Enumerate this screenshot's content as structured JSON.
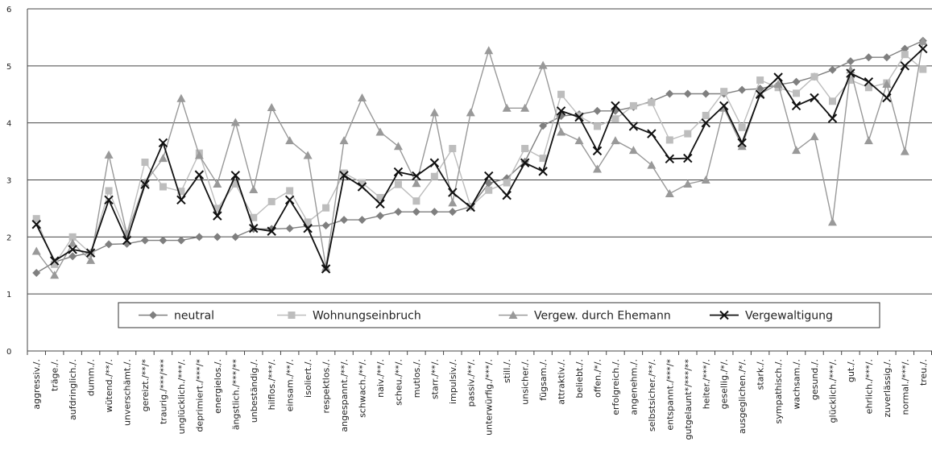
{
  "title": "",
  "chart_data": {
    "type": "line",
    "title": "",
    "xlabel": "",
    "ylabel": "",
    "ylim": [
      0,
      6
    ],
    "yticks": [
      0,
      1,
      2,
      3,
      4,
      5,
      6
    ],
    "grid": true,
    "legend_placement": "center-left",
    "categories": [
      "aggressiv./.",
      "träge./.",
      "aufdringlich./.",
      "dumm./.",
      "wütend./**/.",
      "unverschämt./.",
      "gereizt./**/*",
      "traurig./***/***",
      "unglücklich./***/.",
      "deprimiert./***/*",
      "energielos./.",
      "ängstlich./***/**",
      "unbeständig./.",
      "hilflos./***/.",
      "einsam./**/.",
      "isoliert./.",
      "respektlos./.",
      "angespannt./**/.",
      "schwach./**/.",
      "naiv./**/.",
      "scheu./**/.",
      "mutlos./.",
      "starr./**/.",
      "impulsiv./.",
      "passiv./**/.",
      "unterwürfig./***/.",
      "still./.",
      "unsicher./.",
      "fügsam./.",
      "attraktiv./.",
      "beliebt./.",
      "offen./*/.",
      "erfolgreich./.",
      "angenehm./.",
      "selbstsicher./**/.",
      "entspannt./***/*",
      "gutgelaunt*/***/**",
      "heiter./***/.",
      "gesellig./*/.",
      "ausgeglichen./*/.",
      "stark./.",
      "sympathisch./.",
      "wachsam./.",
      "gesund./.",
      "glücklich./***/.",
      "gut./.",
      "ehrlich./***/.",
      "zuverlässig./.",
      "normal./***/.",
      "treu./."
    ],
    "series": [
      {
        "name": "neutral",
        "marker": "diamond",
        "color": "#7f7f7f",
        "values": [
          1.37,
          1.56,
          1.66,
          1.72,
          1.87,
          1.88,
          1.94,
          1.94,
          1.94,
          2.0,
          2.0,
          2.0,
          2.14,
          2.14,
          2.15,
          2.19,
          2.2,
          2.3,
          2.3,
          2.37,
          2.44,
          2.44,
          2.44,
          2.44,
          2.53,
          2.94,
          3.03,
          3.32,
          3.95,
          4.12,
          4.15,
          4.21,
          4.21,
          4.28,
          4.38,
          4.51,
          4.51,
          4.51,
          4.51,
          4.58,
          4.6,
          4.67,
          4.72,
          4.81,
          4.93,
          5.08,
          5.15,
          5.15,
          5.3,
          5.44
        ]
      },
      {
        "name": "Wohnungseinbruch",
        "marker": "square",
        "color": "#bdbdbd",
        "values": [
          2.32,
          1.52,
          2.0,
          1.71,
          2.81,
          2.05,
          3.31,
          2.88,
          2.8,
          3.47,
          2.5,
          2.93,
          2.34,
          2.62,
          2.81,
          2.26,
          2.51,
          3.12,
          2.95,
          2.69,
          2.92,
          2.63,
          3.06,
          3.55,
          2.53,
          2.82,
          2.95,
          3.55,
          3.38,
          4.5,
          4.12,
          3.94,
          4.07,
          4.3,
          4.36,
          3.7,
          3.81,
          4.13,
          4.55,
          3.92,
          4.75,
          4.62,
          4.52,
          4.81,
          4.38,
          4.75,
          4.62,
          4.7,
          5.2,
          4.94
        ]
      },
      {
        "name": "Vergew. durch Ehemann",
        "marker": "triangle",
        "color": "#999999",
        "values": [
          1.75,
          1.33,
          1.89,
          1.59,
          3.44,
          2.05,
          2.95,
          3.38,
          4.43,
          3.43,
          2.93,
          4.01,
          2.83,
          4.27,
          3.69,
          3.43,
          1.47,
          3.69,
          4.44,
          3.84,
          3.59,
          2.94,
          4.18,
          2.6,
          4.18,
          5.27,
          4.26,
          4.26,
          5.01,
          3.84,
          3.69,
          3.19,
          3.69,
          3.52,
          3.26,
          2.76,
          2.93,
          3.0,
          4.26,
          3.59,
          4.51,
          4.68,
          3.52,
          3.76,
          2.26,
          4.93,
          3.69,
          4.68,
          3.5,
          5.43
        ]
      },
      {
        "name": "Vergewaltigung",
        "marker": "x",
        "color": "#111111",
        "values": [
          2.22,
          1.58,
          1.78,
          1.72,
          2.65,
          1.94,
          2.92,
          3.65,
          2.65,
          3.09,
          2.37,
          3.08,
          2.15,
          2.1,
          2.65,
          2.15,
          1.44,
          3.08,
          2.88,
          2.58,
          3.14,
          3.07,
          3.3,
          2.78,
          2.52,
          3.07,
          2.73,
          3.3,
          3.15,
          4.21,
          4.1,
          3.51,
          4.3,
          3.94,
          3.81,
          3.37,
          3.38,
          4.0,
          4.3,
          3.65,
          4.5,
          4.8,
          4.3,
          4.44,
          4.08,
          4.87,
          4.72,
          4.44,
          5.0,
          5.3
        ]
      }
    ]
  }
}
